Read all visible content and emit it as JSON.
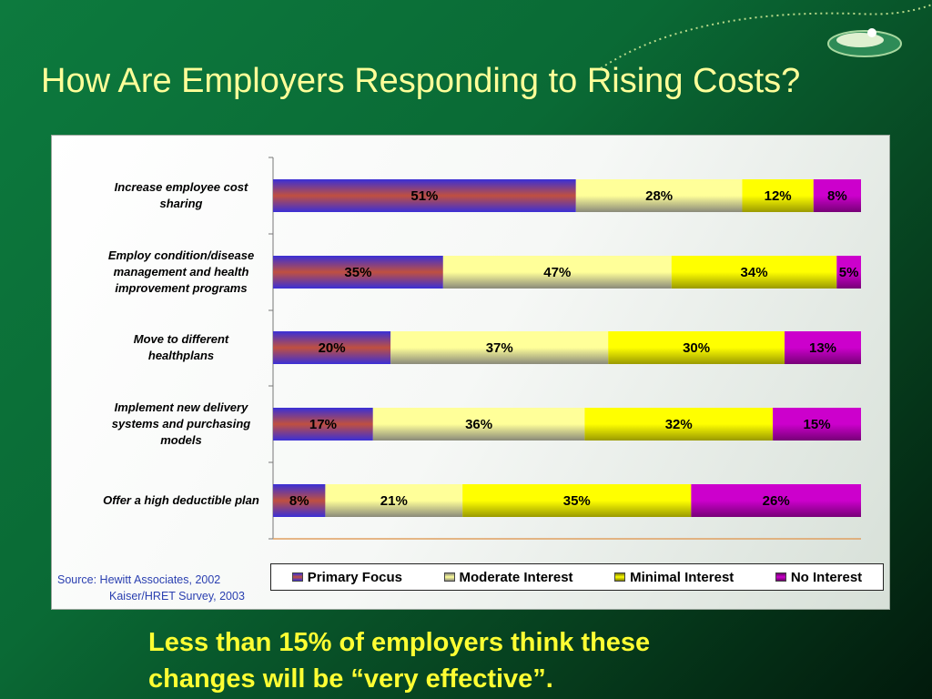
{
  "slide": {
    "title": "How Are Employers Responding to Rising Costs?",
    "caption_line1": "Less than 15% of employers think these",
    "caption_line2": "changes will be “very effective”.",
    "source_line1": "Source:  Hewitt Associates, 2002",
    "source_line2": "Kaiser/HRET Survey, 2003"
  },
  "colors": {
    "primary_focus": "#3a2fd6",
    "moderate_interest": "#ffff99",
    "minimal_interest": "#ffff00",
    "no_interest": "#cc00cc"
  },
  "chart_data": {
    "type": "bar",
    "orientation": "horizontal",
    "stacked": true,
    "categories": [
      [
        "Increase employee cost",
        "sharing"
      ],
      [
        "Employ condition/disease",
        "management and health",
        "improvement programs"
      ],
      [
        "Move to different",
        "healthplans"
      ],
      [
        "Implement new delivery",
        "systems and purchasing",
        "models"
      ],
      [
        "Offer a high deductible plan"
      ]
    ],
    "series": [
      {
        "name": "Primary Focus",
        "values": [
          51,
          35,
          20,
          17,
          8
        ],
        "labels": [
          "51%",
          "35%",
          "20%",
          "17%",
          "8%"
        ]
      },
      {
        "name": "Moderate Interest",
        "values": [
          28,
          47,
          37,
          36,
          21
        ],
        "labels": [
          "28%",
          "47%",
          "37%",
          "36%",
          "21%"
        ]
      },
      {
        "name": "Minimal Interest",
        "values": [
          12,
          34,
          30,
          32,
          35
        ],
        "labels": [
          "12%",
          "34%",
          "30%",
          "32%",
          "35%"
        ]
      },
      {
        "name": "No Interest",
        "values": [
          8,
          5,
          13,
          15,
          26
        ],
        "labels": [
          "8%",
          "5%",
          "13%",
          "15%",
          "26%"
        ]
      }
    ],
    "legend": "bottom",
    "grid": false
  }
}
